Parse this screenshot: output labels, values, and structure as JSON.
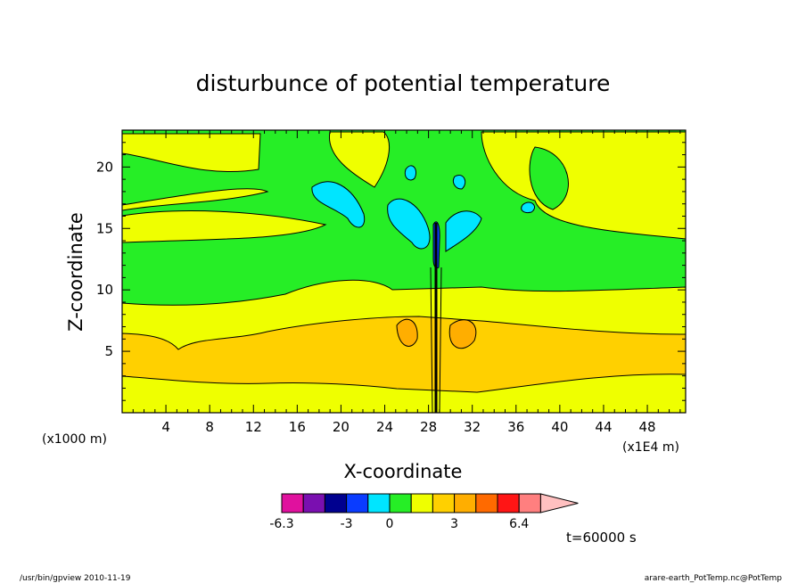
{
  "chart_data": {
    "type": "heatmap",
    "title": "disturbunce of potential temperature",
    "xlabel": "X-coordinate",
    "ylabel": "Z-coordinate",
    "x_unit_label": "(x1E4 m)",
    "y_unit_label": "(x1000 m)",
    "xlim": [
      0,
      51.5
    ],
    "ylim": [
      0,
      23
    ],
    "x_ticks": [
      "4",
      "8",
      "12",
      "16",
      "20",
      "24",
      "28",
      "32",
      "36",
      "40",
      "44",
      "48"
    ],
    "x_tick_values": [
      4,
      8,
      12,
      16,
      20,
      24,
      28,
      32,
      36,
      40,
      44,
      48
    ],
    "y_ticks": [
      "5",
      "10",
      "15",
      "20"
    ],
    "y_tick_values": [
      5,
      10,
      15,
      20
    ],
    "colorbar": {
      "colors": [
        "#e0119e",
        "#7a0fb0",
        "#00008f",
        "#0a3cff",
        "#00e5ff",
        "#26ee26",
        "#efff00",
        "#ffd000",
        "#ffae00",
        "#ff6a00",
        "#ff1515",
        "#ff7f7f",
        "#ffc0c0"
      ],
      "tick_labels": [
        "-6.3",
        "-3",
        "0",
        "3",
        "6.4"
      ]
    },
    "bands": [
      {
        "level": "0 to 0.5",
        "color": "#26ee26",
        "z_bottom": 9,
        "z_top": 23
      },
      {
        "level": "0.5 to 1.5",
        "color": "#efff00",
        "z_bottom": 6.5,
        "z_top": 9
      },
      {
        "level": "1.5 to 2.5",
        "color": "#ffd000",
        "z_bottom": 2.5,
        "z_top": 6.5
      },
      {
        "level": "0.5 to 1.5",
        "color": "#efff00",
        "z_bottom": 0,
        "z_top": 2.5
      }
    ],
    "time_label": "t=60000 s"
  },
  "footer": {
    "left": "/usr/bin/gpview   2010-11-19",
    "right": "arare-earth_PotTemp.nc@PotTemp"
  }
}
